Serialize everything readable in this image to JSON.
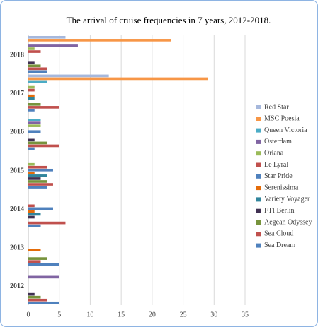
{
  "chart_data": {
    "type": "bar",
    "orientation": "horizontal",
    "title": "The arrival of cruise frequencies  in 7 years, 2012-2018.",
    "categories": [
      "2012",
      "2013",
      "2014",
      "2015",
      "2016",
      "2017",
      "2018"
    ],
    "series": [
      {
        "name": "Red Star",
        "color": "#a6b8dc",
        "values": [
          0,
          0,
          0,
          0,
          0,
          13,
          6
        ]
      },
      {
        "name": "MSC Poesia",
        "color": "#f79646",
        "values": [
          0,
          0,
          0,
          0,
          0,
          29,
          23
        ]
      },
      {
        "name": "Queen Victoria",
        "color": "#4bacc6",
        "values": [
          0,
          0,
          0,
          0,
          2,
          3,
          0
        ]
      },
      {
        "name": "Osterdam",
        "color": "#8064a2",
        "values": [
          5,
          0,
          0,
          0,
          2,
          0,
          8
        ]
      },
      {
        "name": "Oriana",
        "color": "#9bbb59",
        "values": [
          0,
          0,
          0,
          1,
          2,
          1,
          1
        ]
      },
      {
        "name": "Le Lyral",
        "color": "#c0504d",
        "values": [
          0,
          0,
          1,
          3,
          0,
          1,
          2
        ]
      },
      {
        "name": "Star Pride",
        "color": "#4f81bd",
        "values": [
          0,
          0,
          4,
          4,
          2,
          0,
          0
        ]
      },
      {
        "name": "Serenissima",
        "color": "#e46c0a",
        "values": [
          0,
          2,
          1,
          1,
          0,
          1,
          0
        ]
      },
      {
        "name": "Variety Voyager",
        "color": "#31859c",
        "values": [
          0,
          0,
          2,
          3,
          0,
          1,
          0
        ]
      },
      {
        "name": "FTI Berlin",
        "color": "#403152",
        "values": [
          1,
          0,
          1,
          2,
          1,
          0,
          1
        ]
      },
      {
        "name": "Aegean Odyssey",
        "color": "#77933c",
        "values": [
          2,
          3,
          0,
          3,
          3,
          2,
          2
        ]
      },
      {
        "name": "Sea Cloud",
        "color": "#c0504d",
        "values": [
          3,
          2,
          6,
          4,
          5,
          5,
          3
        ]
      },
      {
        "name": "Sea Dream",
        "color": "#4f81bd",
        "values": [
          5,
          5,
          2,
          3,
          1,
          1,
          3
        ]
      }
    ],
    "xlim": [
      0,
      35
    ],
    "xticks": [
      0,
      5,
      10,
      15,
      20,
      25,
      30,
      35
    ],
    "grid": true,
    "legend": "right"
  }
}
